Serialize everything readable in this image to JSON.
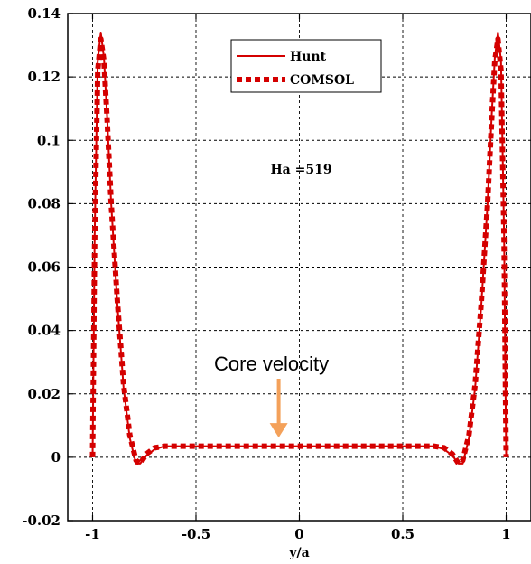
{
  "chart_data": {
    "type": "line",
    "xlabel": "y/a",
    "ylabel": "",
    "xlim": [
      -1.12,
      1.12
    ],
    "ylim": [
      -0.02,
      0.14
    ],
    "x_ticks": [
      -1,
      -0.5,
      0,
      0.5,
      1
    ],
    "x_tick_labels": [
      "-1",
      "-0.5",
      "0",
      "0.5",
      "1"
    ],
    "y_ticks": [
      -0.02,
      0,
      0.02,
      0.04,
      0.06,
      0.08,
      0.1,
      0.12,
      0.14
    ],
    "y_tick_labels": [
      "-0.02",
      "0",
      "0.02",
      "0.04",
      "0.06",
      "0.08",
      "0.1",
      "0.12",
      "0.14"
    ],
    "grid": true,
    "legend_position": "top-center",
    "series": [
      {
        "name": "Hunt",
        "style": "solid",
        "color": "#d40000",
        "x": [
          -1,
          -0.99,
          -0.975,
          -0.96,
          -0.945,
          -0.93,
          -0.91,
          -0.88,
          -0.85,
          -0.82,
          -0.79,
          -0.77,
          -0.74,
          -0.7,
          -0.65,
          -0.6,
          -0.5,
          -0.25,
          0,
          0.25,
          0.5,
          0.6,
          0.65,
          0.7,
          0.74,
          0.77,
          0.79,
          0.82,
          0.85,
          0.88,
          0.91,
          0.93,
          0.945,
          0.96,
          0.975,
          0.99,
          1
        ],
        "y": [
          0,
          0.07,
          0.125,
          0.134,
          0.126,
          0.108,
          0.08,
          0.048,
          0.022,
          0.006,
          -0.002,
          -0.002,
          0.0005,
          0.0025,
          0.0035,
          0.0035,
          0.0035,
          0.0035,
          0.0035,
          0.0035,
          0.0035,
          0.0035,
          0.0035,
          0.0025,
          0.0005,
          -0.002,
          -0.002,
          0.006,
          0.022,
          0.048,
          0.08,
          0.108,
          0.126,
          0.134,
          0.125,
          0.07,
          0
        ]
      },
      {
        "name": "COMSOL",
        "style": "dashed",
        "color": "#d40000",
        "x": [
          -1,
          -0.99,
          -0.975,
          -0.96,
          -0.945,
          -0.93,
          -0.91,
          -0.88,
          -0.85,
          -0.82,
          -0.79,
          -0.77,
          -0.74,
          -0.7,
          -0.65,
          -0.6,
          -0.5,
          -0.25,
          0,
          0.25,
          0.5,
          0.6,
          0.65,
          0.7,
          0.74,
          0.77,
          0.79,
          0.82,
          0.85,
          0.88,
          0.91,
          0.93,
          0.945,
          0.96,
          0.975,
          0.99,
          1
        ],
        "y": [
          0,
          0.068,
          0.122,
          0.132,
          0.125,
          0.107,
          0.08,
          0.049,
          0.023,
          0.007,
          -0.001,
          -0.002,
          0.001,
          0.003,
          0.0035,
          0.0035,
          0.0035,
          0.0035,
          0.0035,
          0.0035,
          0.0035,
          0.0035,
          0.0035,
          0.003,
          0.001,
          -0.002,
          -0.001,
          0.007,
          0.023,
          0.049,
          0.08,
          0.107,
          0.125,
          0.132,
          0.122,
          0.068,
          0
        ]
      }
    ],
    "annotations": [
      {
        "text": "Ha =519",
        "x": -0.14,
        "y": 0.0895
      },
      {
        "text": "Core velocity",
        "x": -0.1,
        "y": 0.0045
      }
    ]
  },
  "colors": {
    "series_red": "#d40000",
    "arrow_orange": "#f4a15a"
  }
}
